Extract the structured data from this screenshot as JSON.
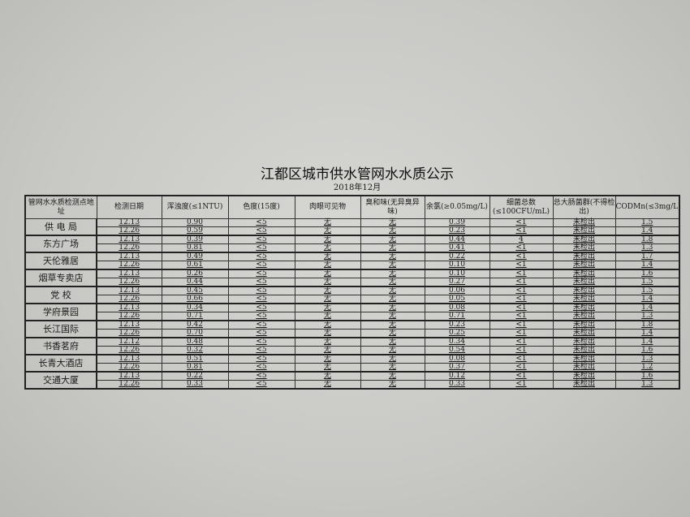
{
  "title": "江都区城市供水管网水水质公示",
  "subtitle": "2018年12月",
  "columns": [
    "管网水水质检测点地址",
    "检测日期",
    "浑浊度(≤1NTU)",
    "色度(15度)",
    "肉眼可见物",
    "臭和味(无异臭异味)",
    "余氯(≥0.05mg/L)",
    "细菌总数(≤100CFU/mL)",
    "总大肠菌群(不得检出)",
    "CODMn(≤3mg/L)"
  ],
  "sites": [
    {
      "name": "供 电 局",
      "rows": [
        [
          "12.13",
          "0.90",
          "<5",
          "无",
          "无",
          "0.39",
          "<1",
          "未检出",
          "1.5"
        ],
        [
          "12.26",
          "0.59",
          "<5",
          "无",
          "无",
          "0.23",
          "<1",
          "未检出",
          "1.4"
        ]
      ]
    },
    {
      "name": "东方广场",
      "rows": [
        [
          "12.13",
          "0.39",
          "<5",
          "无",
          "无",
          "0.44",
          "4",
          "未检出",
          "1.8"
        ],
        [
          "12.26",
          "0.81",
          "<5",
          "无",
          "无",
          "0.41",
          "<1",
          "未检出",
          "1.3"
        ]
      ]
    },
    {
      "name": "天伦雅居",
      "rows": [
        [
          "12.13",
          "0.49",
          "<5",
          "无",
          "无",
          "0.22",
          "<1",
          "未检出",
          "1.7"
        ],
        [
          "12.26",
          "0.61",
          "<5",
          "无",
          "无",
          "0.10",
          "<1",
          "未检出",
          "1.4"
        ]
      ]
    },
    {
      "name": "烟草专卖店",
      "rows": [
        [
          "12.13",
          "0.26",
          "<5",
          "无",
          "无",
          "0.10",
          "<1",
          "未检出",
          "1.6"
        ],
        [
          "12.26",
          "0.44",
          "<5",
          "无",
          "无",
          "0.27",
          "<1",
          "未检出",
          "1.5"
        ]
      ]
    },
    {
      "name": "党  校",
      "rows": [
        [
          "12.13",
          "0.45",
          "<5",
          "无",
          "无",
          "0.06",
          "<1",
          "未检出",
          "1.5"
        ],
        [
          "12.26",
          "0.66",
          "<5",
          "无",
          "无",
          "0.05",
          "<1",
          "未检出",
          "1.4"
        ]
      ]
    },
    {
      "name": "学府景园",
      "rows": [
        [
          "12.13",
          "0.34",
          "<5",
          "无",
          "无",
          "0.08",
          "<1",
          "未检出",
          "1.4"
        ],
        [
          "12.26",
          "0.71",
          "<5",
          "无",
          "无",
          "0.71",
          "<1",
          "未检出",
          "1.3"
        ]
      ]
    },
    {
      "name": "长江国际",
      "rows": [
        [
          "12.13",
          "0.42",
          "<5",
          "无",
          "无",
          "0.23",
          "<1",
          "未检出",
          "1.8"
        ],
        [
          "12.26",
          "0.70",
          "<5",
          "无",
          "无",
          "0.25",
          "<1",
          "未检出",
          "1.4"
        ]
      ]
    },
    {
      "name": "书香茗府",
      "rows": [
        [
          "12.12",
          "0.48",
          "<5",
          "无",
          "无",
          "0.34",
          "<1",
          "未检出",
          "1.4"
        ],
        [
          "12.26",
          "0.32",
          "<5",
          "无",
          "无",
          "0.54",
          "<1",
          "未检出",
          "1.6"
        ]
      ]
    },
    {
      "name": "长青大酒店",
      "rows": [
        [
          "12.13",
          "0.51",
          "<5",
          "无",
          "无",
          "0.08",
          "<1",
          "未检出",
          "1.3"
        ],
        [
          "12.26",
          "0.81",
          "<5",
          "无",
          "无",
          "0.37",
          "<1",
          "未检出",
          "1.2"
        ]
      ]
    },
    {
      "name": "交通大厦",
      "rows": [
        [
          "12.13",
          "0.22",
          "<5",
          "无",
          "无",
          "0.12",
          "<1",
          "未检出",
          "1.6"
        ],
        [
          "12.26",
          "0.33",
          "<5",
          "无",
          "无",
          "0.33",
          "<1",
          "未检出",
          "1.3"
        ]
      ]
    }
  ]
}
